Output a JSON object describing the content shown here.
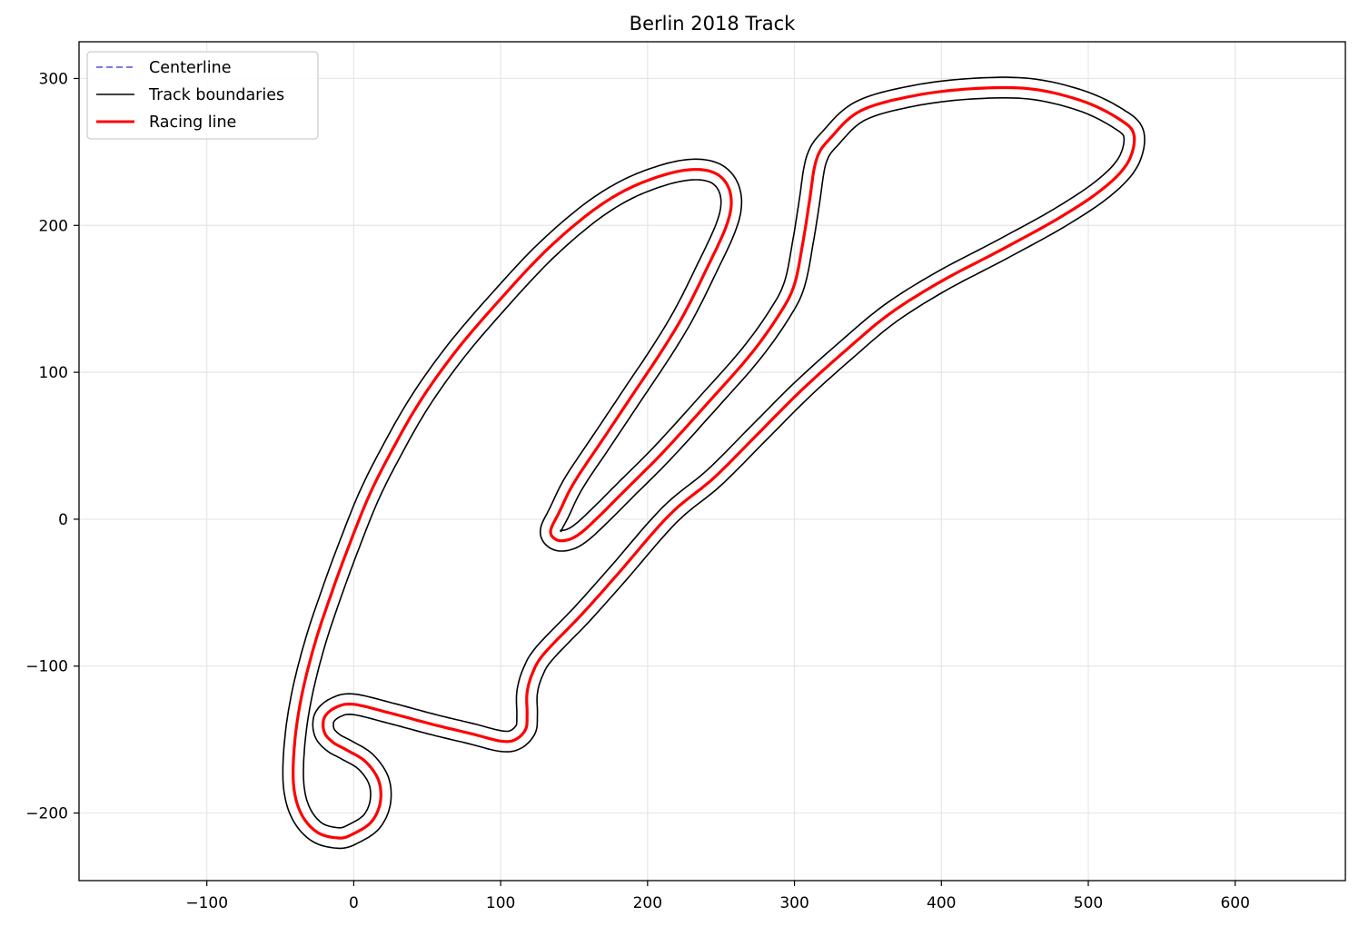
{
  "chart_data": {
    "type": "line",
    "title": "Berlin 2018 Track",
    "xlabel": "",
    "ylabel": "",
    "xlim": [
      -187,
      675
    ],
    "ylim": [
      -246,
      325
    ],
    "xticks": [
      -100,
      0,
      100,
      200,
      300,
      400,
      500,
      600
    ],
    "yticks": [
      -200,
      -100,
      0,
      100,
      200,
      300
    ],
    "xtick_labels": [
      "−100",
      "0",
      "100",
      "200",
      "300",
      "400",
      "500",
      "600"
    ],
    "ytick_labels": [
      "−200",
      "−100",
      "0",
      "100",
      "200",
      "300"
    ],
    "grid": true,
    "legend_position": "top-left",
    "legend": [
      {
        "name": "Centerline",
        "color": "#7a7aee",
        "style": "dashed"
      },
      {
        "name": "Track boundaries",
        "color": "#000000",
        "style": "solid"
      },
      {
        "name": "Racing line",
        "color": "#ff0000",
        "style": "solid"
      }
    ],
    "racing_line": [
      [
        215,
        3
      ],
      [
        180,
        -37
      ],
      [
        155,
        -65
      ],
      [
        130,
        -91
      ],
      [
        122,
        -104
      ],
      [
        118,
        -118
      ],
      [
        118,
        -133
      ],
      [
        117,
        -143
      ],
      [
        110,
        -150
      ],
      [
        100,
        -151
      ],
      [
        80,
        -146
      ],
      [
        55,
        -140
      ],
      [
        25,
        -132
      ],
      [
        0,
        -126
      ],
      [
        -12,
        -128
      ],
      [
        -20,
        -135
      ],
      [
        -20,
        -145
      ],
      [
        -14,
        -152
      ],
      [
        -5,
        -157
      ],
      [
        8,
        -165
      ],
      [
        17,
        -178
      ],
      [
        18,
        -193
      ],
      [
        12,
        -206
      ],
      [
        0,
        -214
      ],
      [
        -10,
        -217
      ],
      [
        -25,
        -213
      ],
      [
        -36,
        -200
      ],
      [
        -41,
        -180
      ],
      [
        -40,
        -150
      ],
      [
        -35,
        -118
      ],
      [
        -26,
        -83
      ],
      [
        -15,
        -50
      ],
      [
        -4,
        -20
      ],
      [
        10,
        15
      ],
      [
        25,
        45
      ],
      [
        45,
        80
      ],
      [
        70,
        115
      ],
      [
        100,
        150
      ],
      [
        130,
        182
      ],
      [
        160,
        208
      ],
      [
        185,
        224
      ],
      [
        210,
        234
      ],
      [
        230,
        238
      ],
      [
        245,
        236
      ],
      [
        254,
        228
      ],
      [
        257,
        215
      ],
      [
        253,
        198
      ],
      [
        240,
        170
      ],
      [
        225,
        140
      ],
      [
        210,
        115
      ],
      [
        190,
        85
      ],
      [
        170,
        55
      ],
      [
        150,
        25
      ],
      [
        140,
        5
      ],
      [
        134,
        -8
      ],
      [
        138,
        -14
      ],
      [
        146,
        -14
      ],
      [
        155,
        -9
      ],
      [
        168,
        3
      ],
      [
        185,
        20
      ],
      [
        210,
        45
      ],
      [
        240,
        78
      ],
      [
        270,
        112
      ],
      [
        290,
        140
      ],
      [
        300,
        160
      ],
      [
        306,
        190
      ],
      [
        310,
        215
      ],
      [
        315,
        245
      ],
      [
        325,
        260
      ],
      [
        345,
        278
      ],
      [
        380,
        288
      ],
      [
        420,
        293
      ],
      [
        460,
        293
      ],
      [
        495,
        285
      ],
      [
        520,
        273
      ],
      [
        531,
        262
      ],
      [
        527,
        243
      ],
      [
        510,
        225
      ],
      [
        480,
        205
      ],
      [
        440,
        183
      ],
      [
        400,
        162
      ],
      [
        365,
        140
      ],
      [
        335,
        115
      ],
      [
        305,
        88
      ],
      [
        275,
        58
      ],
      [
        245,
        28
      ],
      [
        215,
        3
      ]
    ],
    "boundary_offset": 7
  }
}
